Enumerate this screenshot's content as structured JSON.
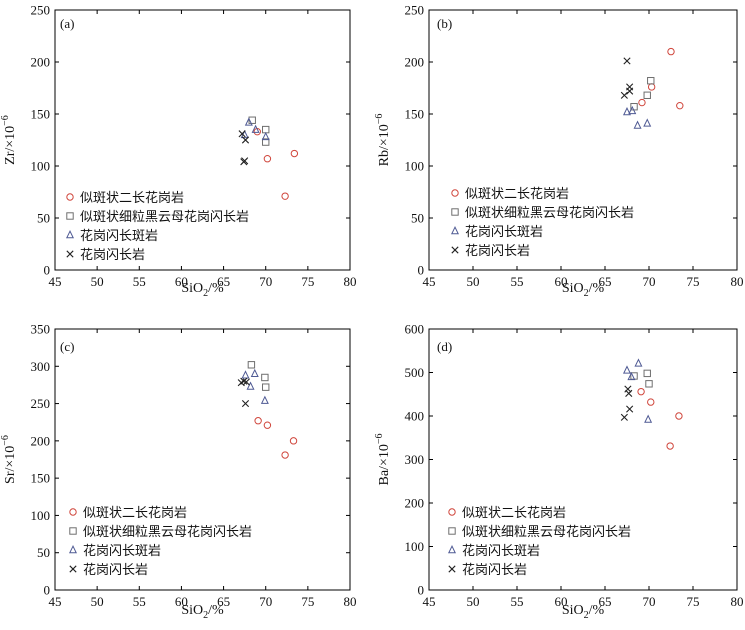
{
  "legend_labels": [
    "似斑状二长花岗岩",
    "似斑状细粒黑云母花岗闪长岩",
    "花岗闪长斑岩",
    "花岗闪长岩"
  ],
  "marker_colors": [
    "#d0463c",
    "#6e6e6e",
    "#4f5a94",
    "#222222"
  ],
  "chart_data": [
    {
      "type": "scatter",
      "panel_label": "(a)",
      "ylabel_main": "Zr/×10",
      "ylabel_exp": "−6",
      "xlabel_main": "SiO",
      "xlabel_sub": "2",
      "xlabel_tail": "/%",
      "xlim": [
        45,
        80
      ],
      "ylim": [
        0,
        250
      ],
      "xticks": [
        "45",
        "50",
        "55",
        "60",
        "65",
        "70",
        "75",
        "80"
      ],
      "yticks": [
        "0",
        "50",
        "100",
        "150",
        "200",
        "250"
      ],
      "series": [
        {
          "name": "似斑状二长花岗岩",
          "marker": "circle",
          "points": [
            [
              69.0,
              133
            ],
            [
              70.2,
              107
            ],
            [
              72.3,
              71
            ],
            [
              73.4,
              112
            ]
          ]
        },
        {
          "name": "似斑状细粒黑云母花岗闪长岩",
          "marker": "square",
          "points": [
            [
              68.4,
              144
            ],
            [
              70.0,
              135
            ],
            [
              70.0,
              123
            ]
          ]
        },
        {
          "name": "花岗闪长斑岩",
          "marker": "triangle",
          "points": [
            [
              67.5,
              130
            ],
            [
              68.0,
              142
            ],
            [
              68.8,
              135
            ],
            [
              70.0,
              128
            ]
          ]
        },
        {
          "name": "花岗闪长岩",
          "marker": "x",
          "points": [
            [
              67.2,
              131
            ],
            [
              67.6,
              125
            ],
            [
              67.5,
              105
            ],
            [
              67.4,
              104
            ]
          ]
        }
      ]
    },
    {
      "type": "scatter",
      "panel_label": "(b)",
      "ylabel_main": "Rb/×10",
      "ylabel_exp": "−6",
      "xlabel_main": "SiO",
      "xlabel_sub": "2",
      "xlabel_tail": "/%",
      "xlim": [
        45,
        80
      ],
      "ylim": [
        0,
        250
      ],
      "xticks": [
        "45",
        "50",
        "55",
        "60",
        "65",
        "70",
        "75",
        "80"
      ],
      "yticks": [
        "0",
        "50",
        "100",
        "150",
        "200",
        "250"
      ],
      "series": [
        {
          "name": "似斑状二长花岗岩",
          "marker": "circle",
          "points": [
            [
              69.2,
              161
            ],
            [
              70.3,
              176
            ],
            [
              72.5,
              210
            ],
            [
              73.5,
              158
            ]
          ]
        },
        {
          "name": "似斑状细粒黑云母花岗闪长岩",
          "marker": "square",
          "points": [
            [
              68.3,
              157
            ],
            [
              69.8,
              168
            ],
            [
              70.2,
              182
            ]
          ]
        },
        {
          "name": "花岗闪长斑岩",
          "marker": "triangle",
          "points": [
            [
              67.5,
              152
            ],
            [
              68.1,
              153
            ],
            [
              68.7,
              139
            ],
            [
              69.8,
              141
            ]
          ]
        },
        {
          "name": "花岗闪长岩",
          "marker": "x",
          "points": [
            [
              67.5,
              201
            ],
            [
              67.8,
              176
            ],
            [
              67.8,
              172
            ],
            [
              67.2,
              168
            ]
          ]
        }
      ]
    },
    {
      "type": "scatter",
      "panel_label": "(c)",
      "ylabel_main": "Sr/×10",
      "ylabel_exp": "−6",
      "xlabel_main": "SiO",
      "xlabel_sub": "2",
      "xlabel_tail": "/%",
      "xlim": [
        45,
        80
      ],
      "ylim": [
        0,
        350
      ],
      "xticks": [
        "45",
        "50",
        "55",
        "60",
        "65",
        "70",
        "75",
        "80"
      ],
      "yticks": [
        "0",
        "50",
        "100",
        "150",
        "200",
        "250",
        "300",
        "350"
      ],
      "series": [
        {
          "name": "似斑状二长花岗岩",
          "marker": "circle",
          "points": [
            [
              69.1,
              227
            ],
            [
              70.2,
              221
            ],
            [
              72.3,
              181
            ],
            [
              73.3,
              200
            ]
          ]
        },
        {
          "name": "似斑状细粒黑云母花岗闪长岩",
          "marker": "square",
          "points": [
            [
              68.3,
              302
            ],
            [
              69.9,
              285
            ],
            [
              70.0,
              272
            ]
          ]
        },
        {
          "name": "花岗闪长斑岩",
          "marker": "triangle",
          "points": [
            [
              67.6,
              288
            ],
            [
              68.7,
              290
            ],
            [
              68.2,
              273
            ],
            [
              69.9,
              254
            ]
          ]
        },
        {
          "name": "花岗闪长岩",
          "marker": "x",
          "points": [
            [
              67.1,
              278
            ],
            [
              67.4,
              280
            ],
            [
              67.7,
              279
            ],
            [
              67.6,
              250
            ]
          ]
        }
      ]
    },
    {
      "type": "scatter",
      "panel_label": "(d)",
      "ylabel_main": "Ba/×10",
      "ylabel_exp": "−6",
      "xlabel_main": "SiO",
      "xlabel_sub": "2",
      "xlabel_tail": "/%",
      "xlim": [
        45,
        80
      ],
      "ylim": [
        0,
        600
      ],
      "xticks": [
        "45",
        "50",
        "55",
        "60",
        "65",
        "70",
        "75",
        "80"
      ],
      "yticks": [
        "0",
        "100",
        "200",
        "300",
        "400",
        "500",
        "600"
      ],
      "series": [
        {
          "name": "似斑状二长花岗岩",
          "marker": "circle",
          "points": [
            [
              69.1,
              456
            ],
            [
              70.2,
              432
            ],
            [
              72.4,
              331
            ],
            [
              73.4,
              400
            ]
          ]
        },
        {
          "name": "似斑状细粒黑云母花岗闪长岩",
          "marker": "square",
          "points": [
            [
              68.3,
              492
            ],
            [
              69.8,
              498
            ],
            [
              70.0,
              474
            ]
          ]
        },
        {
          "name": "花岗闪长斑岩",
          "marker": "triangle",
          "points": [
            [
              67.5,
              505
            ],
            [
              68.8,
              521
            ],
            [
              68.0,
              490
            ],
            [
              69.9,
              392
            ]
          ]
        },
        {
          "name": "花岗闪长岩",
          "marker": "x",
          "points": [
            [
              67.2,
              397
            ],
            [
              67.6,
              462
            ],
            [
              67.7,
              452
            ],
            [
              67.8,
              416
            ]
          ]
        }
      ]
    }
  ]
}
